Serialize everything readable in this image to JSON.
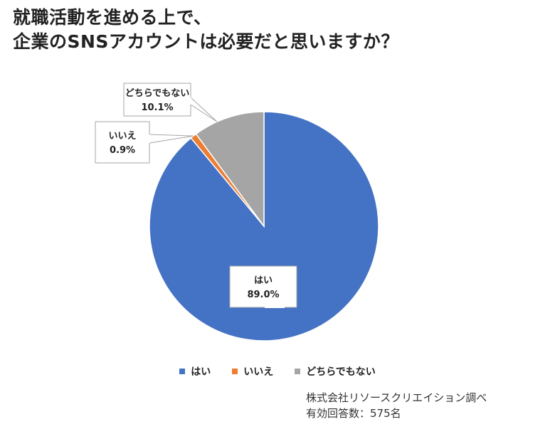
{
  "title": {
    "line1": "就職活動を進める上で、",
    "line2": "企業のSNSアカウントは必要だと思いますか？"
  },
  "chart_data": {
    "type": "pie",
    "categories": [
      "はい",
      "いいえ",
      "どちらでもない"
    ],
    "values": [
      89.0,
      0.9,
      10.1
    ],
    "labels": [
      "89.0%",
      "0.9%",
      "10.1%"
    ],
    "colors": [
      "#4472c4",
      "#ed7d31",
      "#a5a5a5"
    ],
    "legend_position": "bottom"
  },
  "source": {
    "line1": "株式会社リソースクリエイション調べ",
    "line2": "有効回答数：575名"
  }
}
